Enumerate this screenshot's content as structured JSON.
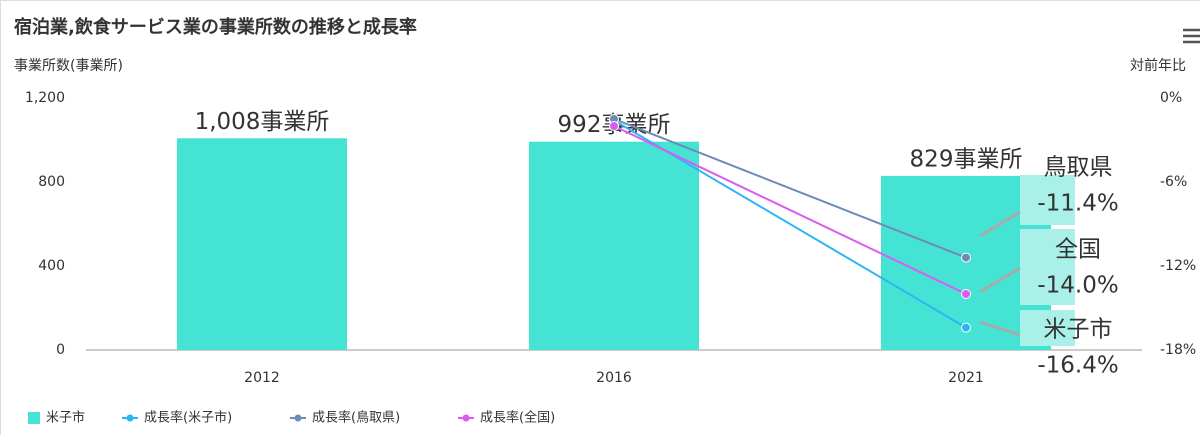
{
  "chart_data": {
    "type": "bar",
    "title": "宿泊業,飲食サービス業の事業所数の推移と成長率",
    "y_label": "事業所数(事業所)",
    "y2_label": "対前年比",
    "categories": [
      "2012",
      "2016",
      "2021"
    ],
    "series": [
      {
        "name": "米子市",
        "type": "bar",
        "color": "#45e3d3",
        "values": [
          1008,
          992,
          829
        ],
        "value_labels": [
          "1,008事業所",
          "992事業所",
          "829事業所"
        ]
      },
      {
        "name": "成長率(米子市)",
        "type": "line",
        "axis": "y2",
        "color": "#2cb5f5",
        "values": [
          null,
          -1.6,
          -16.4
        ],
        "value_labels": [
          null,
          null,
          "-16.4%"
        ]
      },
      {
        "name": "成長率(鳥取県)",
        "type": "line",
        "axis": "y2",
        "color": "#6d8bb5",
        "values": [
          null,
          -1.5,
          -11.4
        ],
        "value_labels": [
          null,
          null,
          "-11.4%"
        ]
      },
      {
        "name": "成長率(全国)",
        "type": "line",
        "axis": "y2",
        "color": "#d75ef0",
        "values": [
          null,
          -2.0,
          -14.0
        ],
        "value_labels": [
          null,
          null,
          "-14.0%"
        ]
      }
    ],
    "annotations": [
      "米子市",
      "鳥取県",
      "全国"
    ],
    "ylim": [
      0,
      1200
    ],
    "yticks": [
      0,
      400,
      800,
      {
        "value": 1200,
        "label": "1,200"
      }
    ],
    "y2lim": [
      -18,
      0
    ],
    "y2ticks": [
      {
        "value": -18,
        "label": "-18%"
      },
      {
        "value": -12,
        "label": "-12%"
      },
      {
        "value": -6,
        "label": "-6%"
      },
      {
        "value": 0,
        "label": "0%"
      }
    ],
    "legend": "bottom"
  }
}
